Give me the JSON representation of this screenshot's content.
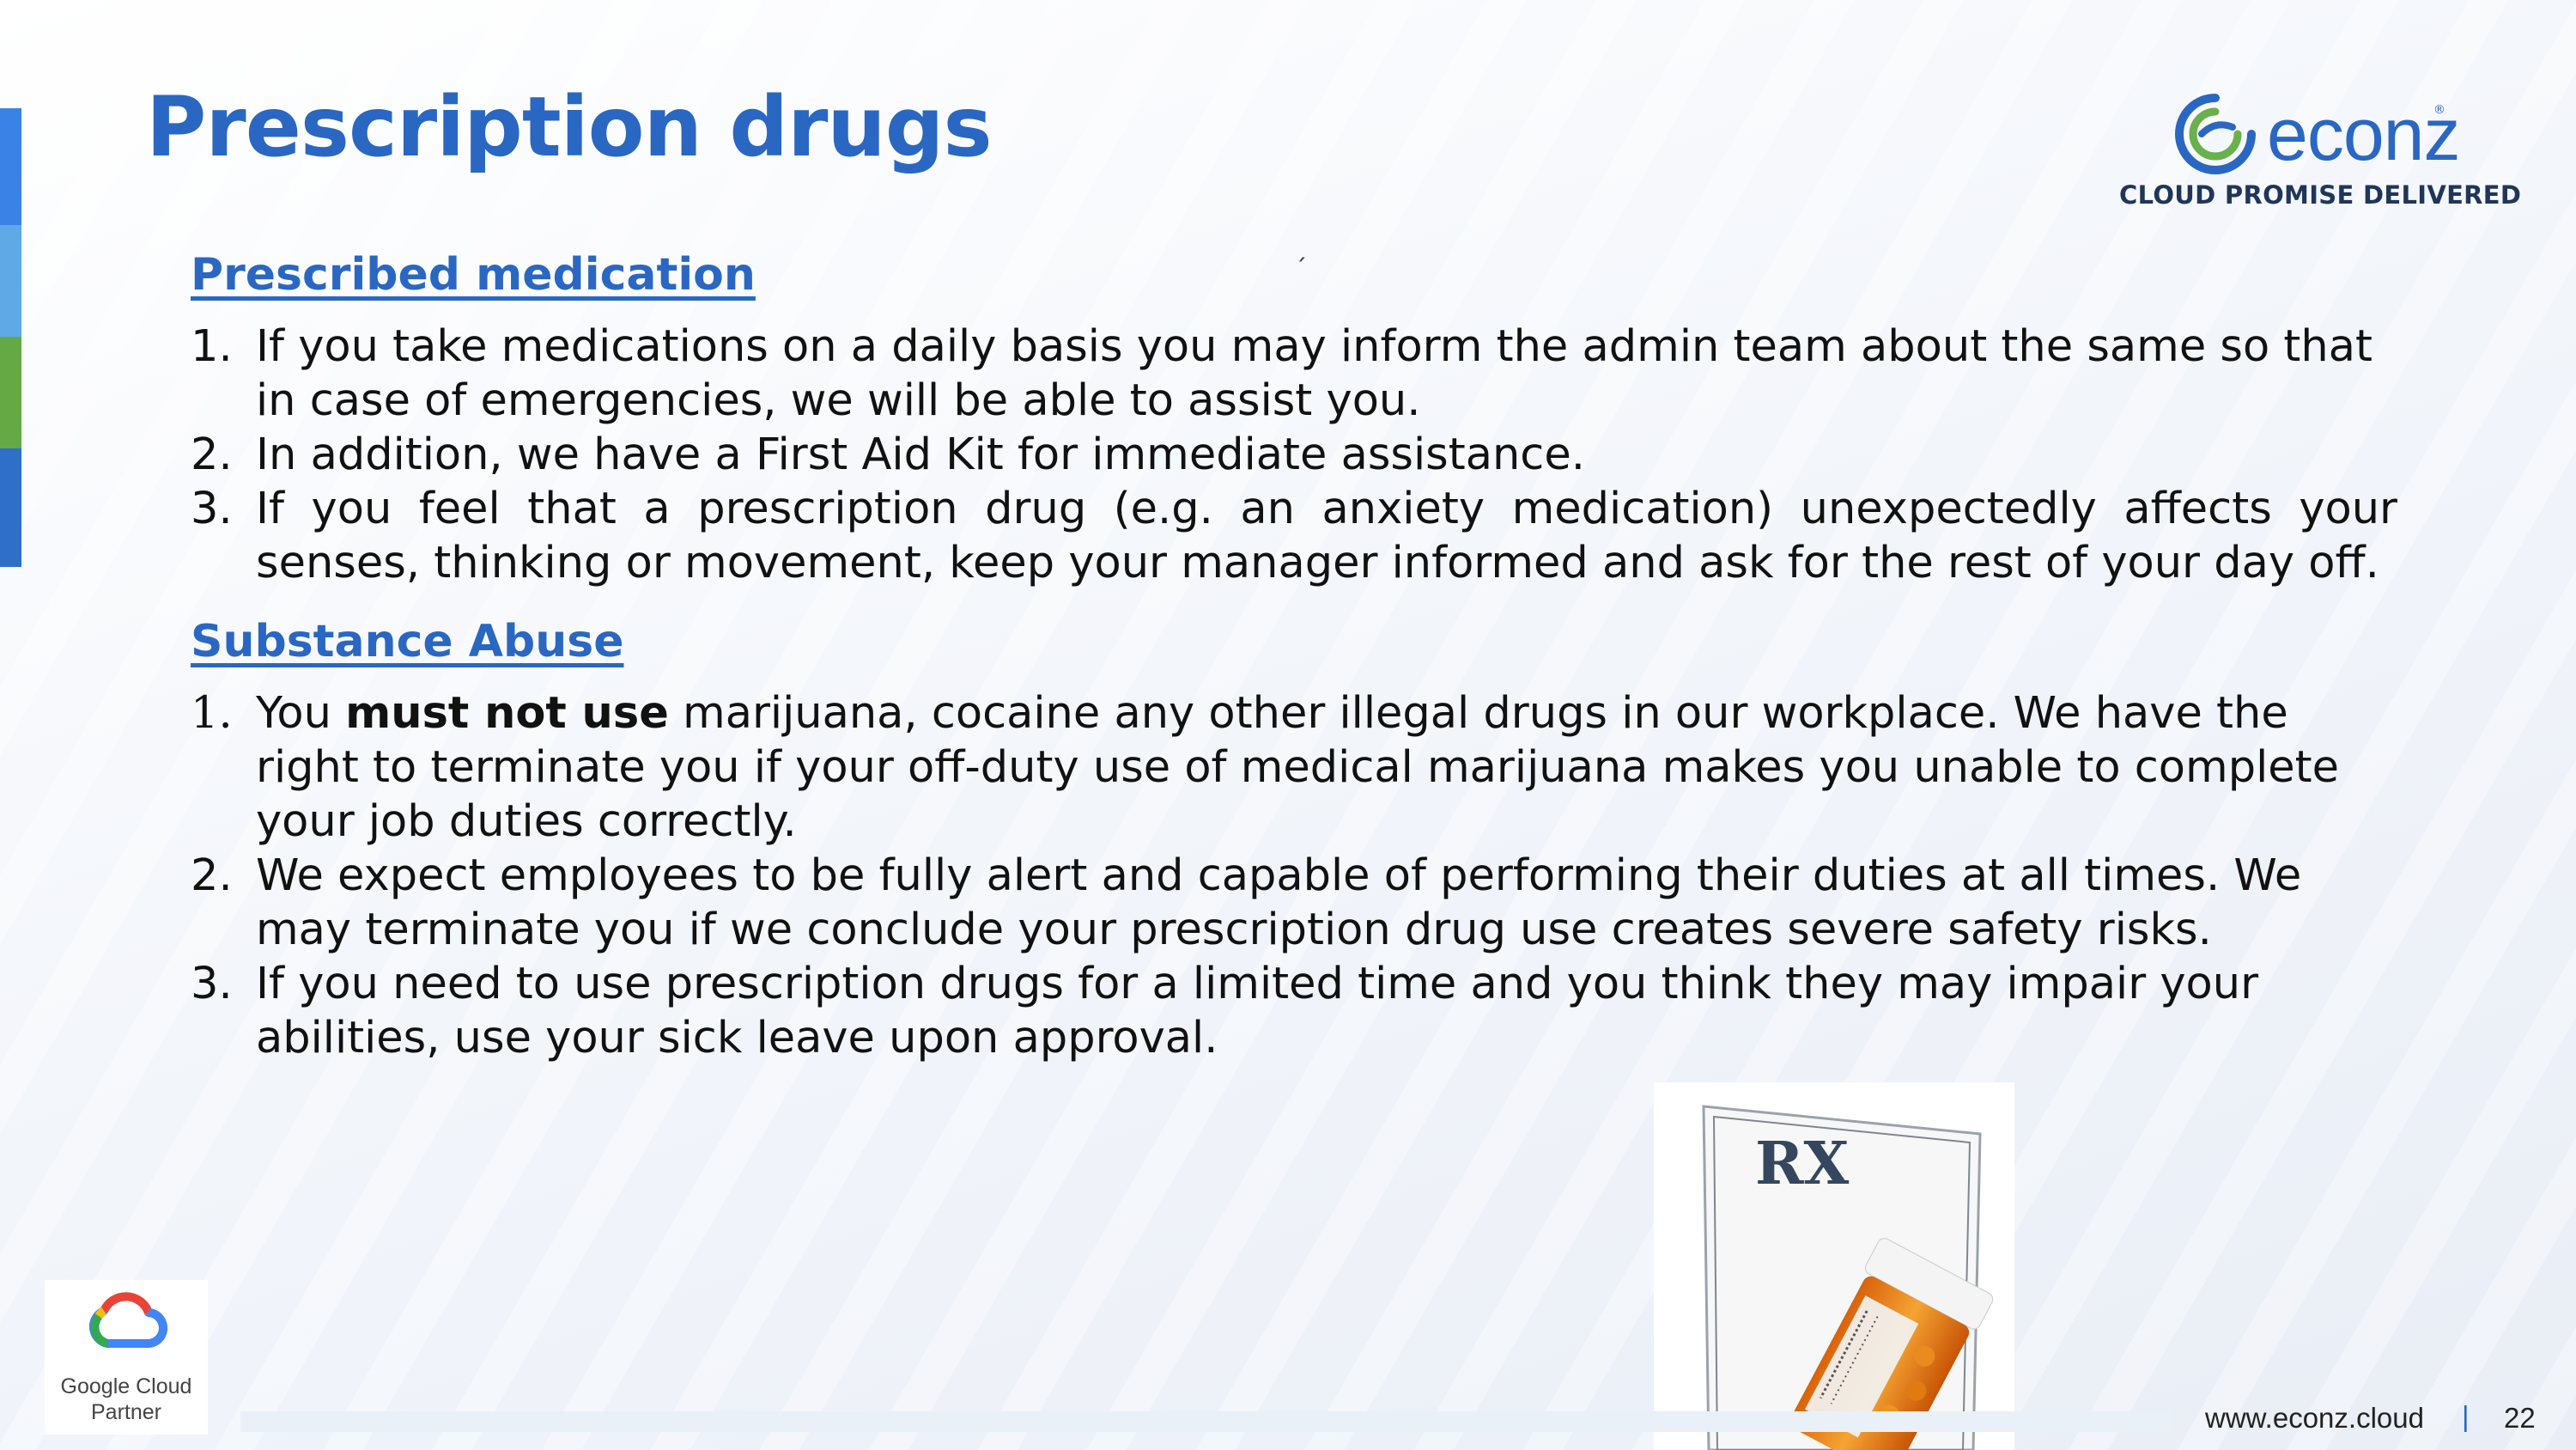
{
  "slide": {
    "title": "Prescription drugs",
    "page_number": "22"
  },
  "brand": {
    "name": "econz",
    "registered_mark": "®",
    "tagline": "CLOUD PROMISE DELIVERED",
    "accent_color": "#2a67c2",
    "side_bar_colors": [
      "#3b82e6",
      "#5ea9e6",
      "#64a944",
      "#2f6fc9"
    ]
  },
  "prescribed": {
    "heading": "Prescribed medication",
    "items": [
      {
        "num": "1.",
        "text": "If you take medications on a daily basis you may inform the admin team about the same so that in case of emergencies, we will be able to assist you."
      },
      {
        "num": "2.",
        "text": "In addition, we have a First Aid Kit for immediate assistance."
      },
      {
        "num": "3.",
        "text": "If you feel that a prescription drug (e.g. an anxiety medication) unexpectedly affects your senses, thinking or movement, keep your manager informed and ask for the rest of your day off."
      }
    ]
  },
  "substance": {
    "heading": "Substance Abuse",
    "items": [
      {
        "num": "1.",
        "pre": "You",
        "bold": "must not use",
        "post": "marijuana, cocaine any other illegal drugs in our workplace. We have the right to terminate you if your off-duty use of medical marijuana makes you unable to complete your job duties correctly."
      },
      {
        "num": "2.",
        "text": "We expect employees to be fully alert and capable of performing their duties at all times. We may terminate you if we conclude your prescription drug use creates severe safety risks."
      },
      {
        "num": "3.",
        "text": "If you need to use prescription drugs for a limited time and you think they may impair your abilities, use your sick leave upon approval."
      }
    ]
  },
  "image": {
    "rx_symbol": "RX",
    "icon": "prescription-pad-and-pill-bottle"
  },
  "partner": {
    "line1": "Google Cloud",
    "line2": "Partner"
  },
  "footer": {
    "url": "www.econz.cloud",
    "separator": "|"
  }
}
